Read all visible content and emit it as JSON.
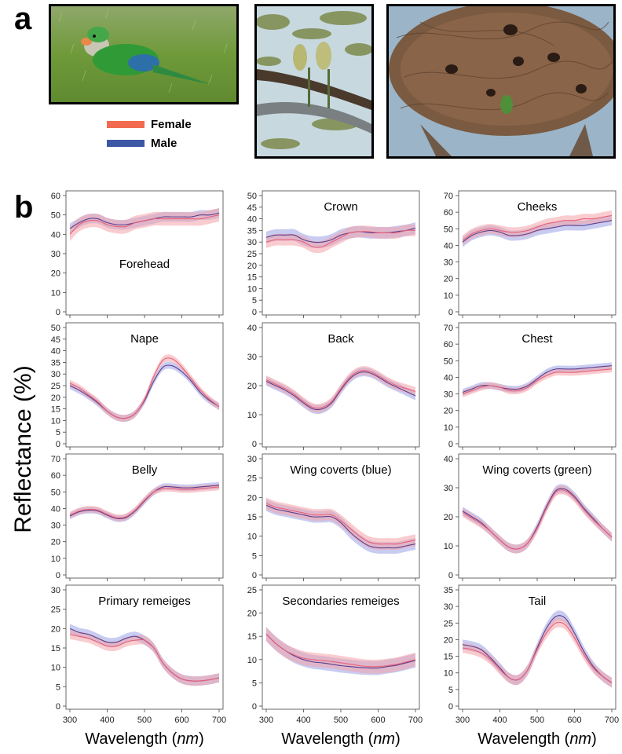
{
  "panel_a_label": "a",
  "panel_b_label": "b",
  "legend": [
    {
      "label": "Female",
      "color": "#f26b50"
    },
    {
      "label": "Male",
      "color": "#3b57a6"
    }
  ],
  "y_axis_title": "Reflectance (%)",
  "x_axis_title_main": "Wavelength (",
  "x_axis_title_unit": "nm",
  "x_axis_title_close": ")",
  "colors": {
    "female_line": "#e8607a",
    "female_band": "#f4a3a8",
    "male_line": "#5a3f8c",
    "male_band": "#9aa3e6"
  },
  "chart_data": [
    {
      "type": "line",
      "title": "Forehead",
      "ylim": [
        0,
        60
      ],
      "yticks": [
        0,
        10,
        20,
        30,
        40,
        50,
        60
      ],
      "xlim": [
        300,
        700
      ],
      "xticks": [
        300,
        400,
        500,
        600,
        700
      ],
      "x": [
        300,
        325,
        350,
        375,
        400,
        425,
        450,
        475,
        500,
        525,
        550,
        575,
        600,
        625,
        650,
        675,
        700
      ],
      "series": [
        {
          "name": "Female",
          "values": [
            40,
            45,
            47,
            47,
            45,
            44,
            44,
            46,
            47,
            48,
            48,
            48,
            48,
            48,
            48,
            49,
            50
          ],
          "band": 3.5
        },
        {
          "name": "Male",
          "values": [
            43,
            46,
            48,
            48,
            46,
            45,
            45,
            46,
            47,
            48,
            49,
            49,
            49,
            49,
            50,
            50,
            51
          ],
          "band": 2.5
        }
      ]
    },
    {
      "type": "line",
      "title": "Crown",
      "ylim": [
        0,
        50
      ],
      "yticks": [
        0,
        5,
        10,
        15,
        20,
        25,
        30,
        35,
        40,
        45,
        50
      ],
      "xlim": [
        300,
        700
      ],
      "xticks": [
        300,
        400,
        500,
        600,
        700
      ],
      "x": [
        300,
        325,
        350,
        375,
        400,
        425,
        450,
        475,
        500,
        525,
        550,
        575,
        600,
        625,
        650,
        675,
        700
      ],
      "series": [
        {
          "name": "Female",
          "values": [
            30,
            31,
            31,
            31,
            30,
            28,
            28,
            30,
            32,
            34,
            34.5,
            34.5,
            34,
            34,
            34,
            35,
            35
          ],
          "band": 2.5
        },
        {
          "name": "Male",
          "values": [
            32,
            33,
            33,
            33,
            31,
            30,
            30,
            31,
            33,
            34,
            34.5,
            34,
            34,
            34,
            34.5,
            35,
            36
          ],
          "band": 2.5
        }
      ]
    },
    {
      "type": "line",
      "title": "Cheeks",
      "ylim": [
        0,
        70
      ],
      "yticks": [
        0,
        10,
        20,
        30,
        40,
        50,
        60,
        70
      ],
      "xlim": [
        300,
        700
      ],
      "xticks": [
        300,
        400,
        500,
        600,
        700
      ],
      "x": [
        300,
        325,
        350,
        375,
        400,
        425,
        450,
        475,
        500,
        525,
        550,
        575,
        600,
        625,
        650,
        675,
        700
      ],
      "series": [
        {
          "name": "Female",
          "values": [
            43,
            47,
            49,
            50,
            49,
            48,
            48,
            49,
            51,
            53,
            54,
            55,
            55,
            56,
            56,
            57,
            58
          ],
          "band": 3
        },
        {
          "name": "Male",
          "values": [
            42,
            46,
            48,
            49,
            48,
            46,
            46,
            47,
            49,
            50,
            51,
            52,
            52,
            52,
            53,
            54,
            55
          ],
          "band": 3
        }
      ]
    },
    {
      "type": "line",
      "title": "Nape",
      "ylim": [
        0,
        50
      ],
      "yticks": [
        0,
        5,
        10,
        15,
        20,
        25,
        30,
        35,
        40,
        45,
        50
      ],
      "xlim": [
        300,
        700
      ],
      "xticks": [
        300,
        400,
        500,
        600,
        700
      ],
      "x": [
        300,
        325,
        350,
        375,
        400,
        425,
        450,
        475,
        500,
        525,
        550,
        575,
        600,
        625,
        650,
        675,
        700
      ],
      "series": [
        {
          "name": "Female",
          "values": [
            26,
            24,
            21,
            18,
            14,
            11.5,
            11,
            13,
            19,
            29,
            36,
            36.5,
            33,
            28,
            23,
            19,
            16
          ],
          "band": 1.5
        },
        {
          "name": "Male",
          "values": [
            25,
            23,
            20.5,
            17.5,
            14,
            11.5,
            11,
            13,
            18.5,
            27,
            33,
            33.5,
            31,
            27,
            22,
            18.5,
            16
          ],
          "band": 1.5
        }
      ]
    },
    {
      "type": "line",
      "title": "Back",
      "ylim": [
        0,
        40
      ],
      "yticks": [
        0,
        10,
        20,
        30,
        40
      ],
      "xlim": [
        300,
        700
      ],
      "xticks": [
        300,
        400,
        500,
        600,
        700
      ],
      "x": [
        300,
        325,
        350,
        375,
        400,
        425,
        450,
        475,
        500,
        525,
        550,
        575,
        600,
        625,
        650,
        675,
        700
      ],
      "series": [
        {
          "name": "Female",
          "values": [
            22,
            20.5,
            19,
            17,
            14.5,
            12.5,
            12.5,
            14.5,
            19,
            23,
            25,
            25,
            23.5,
            21.5,
            20,
            19,
            18
          ],
          "band": 1.5
        },
        {
          "name": "Male",
          "values": [
            21.5,
            20,
            18.5,
            16.5,
            14,
            12,
            12,
            14,
            18.5,
            22.5,
            24.5,
            24.5,
            23,
            21,
            19.5,
            18,
            16.5
          ],
          "band": 1.5
        }
      ]
    },
    {
      "type": "line",
      "title": "Chest",
      "ylim": [
        0,
        70
      ],
      "yticks": [
        0,
        10,
        20,
        30,
        40,
        50,
        60,
        70
      ],
      "xlim": [
        300,
        700
      ],
      "xticks": [
        300,
        400,
        500,
        600,
        700
      ],
      "x": [
        300,
        325,
        350,
        375,
        400,
        425,
        450,
        475,
        500,
        525,
        550,
        575,
        600,
        625,
        650,
        675,
        700
      ],
      "series": [
        {
          "name": "Female",
          "values": [
            30,
            32,
            34,
            35,
            34,
            32,
            32,
            34,
            38,
            41,
            43,
            43,
            43,
            43.5,
            44,
            44.5,
            45
          ],
          "band": 2
        },
        {
          "name": "Male",
          "values": [
            31,
            33,
            35,
            35,
            34,
            33,
            33,
            35,
            39,
            43,
            45,
            45,
            45,
            45.5,
            46,
            46.5,
            47
          ],
          "band": 2
        }
      ]
    },
    {
      "type": "line",
      "title": "Belly",
      "ylim": [
        0,
        70
      ],
      "yticks": [
        0,
        10,
        20,
        30,
        40,
        50,
        60,
        70
      ],
      "xlim": [
        300,
        700
      ],
      "xticks": [
        300,
        400,
        500,
        600,
        700
      ],
      "x": [
        300,
        325,
        350,
        375,
        400,
        425,
        450,
        475,
        500,
        525,
        550,
        575,
        600,
        625,
        650,
        675,
        700
      ],
      "series": [
        {
          "name": "Female",
          "values": [
            36,
            38.5,
            39.5,
            39,
            36.5,
            34.5,
            35,
            39,
            45,
            50,
            52,
            52,
            51.5,
            51.5,
            52,
            52.5,
            53
          ],
          "band": 2
        },
        {
          "name": "Male",
          "values": [
            35.5,
            38,
            39,
            38.5,
            36,
            34,
            34.5,
            38.5,
            44.5,
            50,
            53,
            53,
            52.5,
            52.5,
            53,
            53.5,
            54
          ],
          "band": 2
        }
      ]
    },
    {
      "type": "line",
      "title": "Wing coverts (blue)",
      "ylim": [
        0,
        30
      ],
      "yticks": [
        0,
        5,
        10,
        15,
        20,
        25,
        30
      ],
      "xlim": [
        300,
        700
      ],
      "xticks": [
        300,
        400,
        500,
        600,
        700
      ],
      "x": [
        300,
        325,
        350,
        375,
        400,
        425,
        450,
        475,
        500,
        525,
        550,
        575,
        600,
        625,
        650,
        675,
        700
      ],
      "series": [
        {
          "name": "Female",
          "values": [
            18.5,
            17.5,
            17,
            16.5,
            16,
            15.5,
            15.5,
            15.5,
            14,
            12,
            10,
            8.5,
            8,
            8,
            8,
            8.5,
            9
          ],
          "band": 1.5
        },
        {
          "name": "Male",
          "values": [
            18,
            17,
            16.5,
            16,
            15.5,
            15,
            15,
            15,
            13.5,
            11,
            9,
            7.5,
            7,
            7,
            7,
            7.5,
            8
          ],
          "band": 1.5
        }
      ]
    },
    {
      "type": "line",
      "title": "Wing coverts (green)",
      "ylim": [
        0,
        40
      ],
      "yticks": [
        0,
        10,
        20,
        30,
        40
      ],
      "xlim": [
        300,
        700
      ],
      "xticks": [
        300,
        400,
        500,
        600,
        700
      ],
      "x": [
        300,
        325,
        350,
        375,
        400,
        425,
        450,
        475,
        500,
        525,
        550,
        575,
        600,
        625,
        650,
        675,
        700
      ],
      "series": [
        {
          "name": "Female",
          "values": [
            21.5,
            19.5,
            17.5,
            15,
            12,
            9.5,
            9,
            11,
            16,
            23,
            28.5,
            29,
            26.5,
            22.5,
            19,
            16,
            13
          ],
          "band": 1.5
        },
        {
          "name": "Male",
          "values": [
            22,
            20,
            18,
            15,
            12,
            9.5,
            9,
            11,
            16.5,
            23.5,
            29,
            29.5,
            27,
            23,
            19.5,
            16,
            13
          ],
          "band": 1.5
        }
      ]
    },
    {
      "type": "line",
      "title": "Primary remeiges",
      "ylim": [
        0,
        30
      ],
      "yticks": [
        0,
        5,
        10,
        15,
        20,
        25,
        30
      ],
      "xlim": [
        300,
        700
      ],
      "xticks": [
        300,
        400,
        500,
        600,
        700
      ],
      "x": [
        300,
        325,
        350,
        375,
        400,
        425,
        450,
        475,
        500,
        525,
        550,
        575,
        600,
        625,
        650,
        675,
        700
      ],
      "series": [
        {
          "name": "Female",
          "values": [
            18.5,
            18,
            17.5,
            16.5,
            15.5,
            15.5,
            16.5,
            17,
            17,
            15,
            11,
            8.5,
            7,
            6.5,
            6.5,
            6.8,
            7.3
          ],
          "band": 1.2
        },
        {
          "name": "Male",
          "values": [
            20,
            19,
            18.5,
            17.5,
            16.5,
            16.5,
            17.5,
            18,
            17,
            15,
            11,
            8.5,
            7,
            6.5,
            6.5,
            6.8,
            7.3
          ],
          "band": 1.2
        }
      ]
    },
    {
      "type": "line",
      "title": "Secondaries remeiges",
      "ylim": [
        0,
        25
      ],
      "yticks": [
        0,
        5,
        10,
        15,
        20,
        25
      ],
      "xlim": [
        300,
        700
      ],
      "xticks": [
        300,
        400,
        500,
        600,
        700
      ],
      "x": [
        300,
        325,
        350,
        375,
        400,
        425,
        450,
        475,
        500,
        525,
        550,
        575,
        600,
        625,
        650,
        675,
        700
      ],
      "series": [
        {
          "name": "Female",
          "values": [
            15.5,
            13.5,
            12,
            11,
            10.3,
            10,
            9.8,
            9.6,
            9.3,
            9,
            8.7,
            8.5,
            8.5,
            8.7,
            9,
            9.5,
            10
          ],
          "band": 1.5
        },
        {
          "name": "Male",
          "values": [
            15.5,
            13.5,
            12,
            10.8,
            10,
            9.5,
            9.3,
            9,
            8.7,
            8.5,
            8.3,
            8.2,
            8.2,
            8.5,
            8.8,
            9.3,
            9.8
          ],
          "band": 1.5
        }
      ]
    },
    {
      "type": "line",
      "title": "Tail",
      "ylim": [
        0,
        35
      ],
      "yticks": [
        0,
        5,
        10,
        15,
        20,
        25,
        30,
        35
      ],
      "xlim": [
        300,
        700
      ],
      "xticks": [
        300,
        400,
        500,
        600,
        700
      ],
      "x": [
        300,
        325,
        350,
        375,
        400,
        425,
        450,
        475,
        500,
        525,
        550,
        575,
        600,
        625,
        650,
        675,
        700
      ],
      "series": [
        {
          "name": "Female",
          "values": [
            17.5,
            17,
            16,
            14,
            11,
            8.5,
            8,
            11,
            17,
            22,
            25,
            24.5,
            20.5,
            15.5,
            11.5,
            9,
            7
          ],
          "band": 1.5
        },
        {
          "name": "Male",
          "values": [
            18.5,
            18,
            17,
            14.5,
            11.5,
            8.5,
            8,
            11,
            17.5,
            23.5,
            27,
            26.5,
            22,
            16.5,
            12,
            9,
            7
          ],
          "band": 1.5
        }
      ]
    }
  ]
}
